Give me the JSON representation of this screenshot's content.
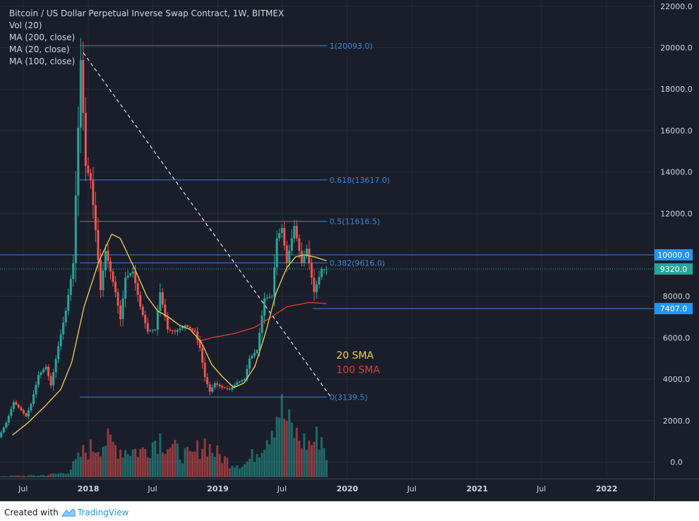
{
  "legend": {
    "title": "Bitcoin / US Dollar Perpetual Inverse Swap Contract, 1W, BITMEX",
    "lines": [
      "Vol (20)",
      "MA (200, close)",
      "MA (20, close)",
      "MA (100, close)"
    ]
  },
  "footer": {
    "created_with": "Created with",
    "brand": "TradingView"
  },
  "colors": {
    "background": "#1a1e2b",
    "axis_text": "#d1d4dc",
    "grid": "#262b3a",
    "up": "#26a69a",
    "down": "#ef5350",
    "fib": "#3c83d7",
    "ma20": "#f2d34d",
    "ma100": "#e03c31",
    "trendline": "#dfe1e6"
  },
  "chart_data": {
    "type": "candlestick",
    "title": "Bitcoin / US Dollar Perpetual Inverse Swap Contract, 1W, BITMEX",
    "ylim": [
      -800,
      22300
    ],
    "y_ticks": [
      "22000.0",
      "20000.0",
      "18000.0",
      "16000.0",
      "14000.0",
      "12000.0",
      "10000.0",
      "8000.0",
      "6000.0",
      "4000.0",
      "2000.0",
      "0.0"
    ],
    "x_ticks": [
      "Jul",
      "2018",
      "Jul",
      "2019",
      "Jul",
      "2020",
      "Jul",
      "2021",
      "Jul",
      "2022"
    ],
    "x_tick_dates": [
      "2017-07-01",
      "2018-01-01",
      "2018-07-01",
      "2019-01-01",
      "2019-07-01",
      "2020-01-01",
      "2020-07-01",
      "2021-01-01",
      "2021-07-01",
      "2022-01-01"
    ],
    "x_range": [
      "2017-04-27",
      "2022-05-14"
    ],
    "price_path": [
      [
        "2017-04-27",
        1200
      ],
      [
        "2017-05-18",
        1900
      ],
      [
        "2017-06-08",
        2900
      ],
      [
        "2017-06-29",
        2500
      ],
      [
        "2017-07-13",
        2200
      ],
      [
        "2017-07-27",
        2800
      ],
      [
        "2017-08-17",
        4200
      ],
      [
        "2017-09-07",
        4600
      ],
      [
        "2017-09-21",
        3700
      ],
      [
        "2017-10-12",
        5600
      ],
      [
        "2017-11-02",
        7300
      ],
      [
        "2017-11-23",
        9600
      ],
      [
        "2017-12-14",
        19400
      ],
      [
        "2017-12-28",
        14300
      ],
      [
        "2018-01-11",
        13600
      ],
      [
        "2018-01-25",
        11200
      ],
      [
        "2018-02-08",
        8300
      ],
      [
        "2018-02-22",
        10200
      ],
      [
        "2018-03-08",
        9200
      ],
      [
        "2018-03-22",
        8200
      ],
      [
        "2018-04-05",
        6900
      ],
      [
        "2018-04-19",
        8900
      ],
      [
        "2018-05-10",
        9200
      ],
      [
        "2018-05-31",
        7500
      ],
      [
        "2018-06-21",
        6300
      ],
      [
        "2018-07-12",
        6400
      ],
      [
        "2018-07-26",
        8200
      ],
      [
        "2018-08-16",
        6400
      ],
      [
        "2018-09-06",
        6300
      ],
      [
        "2018-10-04",
        6600
      ],
      [
        "2018-11-01",
        6300
      ],
      [
        "2018-11-15",
        5500
      ],
      [
        "2018-11-29",
        4100
      ],
      [
        "2018-12-13",
        3400
      ],
      [
        "2018-12-27",
        3800
      ],
      [
        "2019-01-17",
        3600
      ],
      [
        "2019-02-07",
        3500
      ],
      [
        "2019-02-28",
        3850
      ],
      [
        "2019-03-21",
        4000
      ],
      [
        "2019-04-04",
        5000
      ],
      [
        "2019-04-25",
        5400
      ],
      [
        "2019-05-16",
        7900
      ],
      [
        "2019-06-06",
        8000
      ],
      [
        "2019-06-20",
        10800
      ],
      [
        "2019-07-04",
        11300
      ],
      [
        "2019-07-18",
        9600
      ],
      [
        "2019-08-08",
        11400
      ],
      [
        "2019-08-29",
        9600
      ],
      [
        "2019-09-12",
        10300
      ],
      [
        "2019-10-03",
        8200
      ],
      [
        "2019-10-24",
        9300
      ],
      [
        "2019-11-06",
        9300
      ]
    ],
    "volume_path": [
      [
        "2017-04-27",
        60
      ],
      [
        "2017-07-01",
        90
      ],
      [
        "2017-09-01",
        130
      ],
      [
        "2017-11-01",
        300
      ],
      [
        "2017-12-14",
        1500
      ],
      [
        "2018-01-15",
        1850
      ],
      [
        "2018-02-15",
        2200
      ],
      [
        "2018-04-01",
        1700
      ],
      [
        "2018-06-01",
        1600
      ],
      [
        "2018-07-15",
        2500
      ],
      [
        "2018-09-01",
        1600
      ],
      [
        "2018-10-15",
        1200
      ],
      [
        "2018-11-20",
        2200
      ],
      [
        "2018-12-20",
        1500
      ],
      [
        "2019-02-01",
        900
      ],
      [
        "2019-03-15",
        800
      ],
      [
        "2019-04-15",
        1500
      ],
      [
        "2019-05-15",
        2600
      ],
      [
        "2019-06-20",
        4300
      ],
      [
        "2019-07-15",
        3200
      ],
      [
        "2019-08-15",
        2300
      ],
      [
        "2019-09-15",
        2000
      ],
      [
        "2019-10-15",
        2600
      ],
      [
        "2019-11-06",
        900
      ]
    ],
    "ma20_path": [
      [
        "2017-06-01",
        1300
      ],
      [
        "2017-07-15",
        1900
      ],
      [
        "2017-09-01",
        2700
      ],
      [
        "2017-10-15",
        3500
      ],
      [
        "2017-11-15",
        4800
      ],
      [
        "2017-12-20",
        7500
      ],
      [
        "2018-01-31",
        9700
      ],
      [
        "2018-03-08",
        11000
      ],
      [
        "2018-04-01",
        10800
      ],
      [
        "2018-05-15",
        9200
      ],
      [
        "2018-06-15",
        8000
      ],
      [
        "2018-07-15",
        7300
      ],
      [
        "2018-08-15",
        7000
      ],
      [
        "2018-09-15",
        6600
      ],
      [
        "2018-10-15",
        6400
      ],
      [
        "2018-11-15",
        5800
      ],
      [
        "2018-12-15",
        4700
      ],
      [
        "2019-01-15",
        4100
      ],
      [
        "2019-02-15",
        3600
      ],
      [
        "2019-03-15",
        3800
      ],
      [
        "2019-04-15",
        4600
      ],
      [
        "2019-05-15",
        6200
      ],
      [
        "2019-06-15",
        8200
      ],
      [
        "2019-07-15",
        9400
      ],
      [
        "2019-08-08",
        9900
      ],
      [
        "2019-09-01",
        10000
      ],
      [
        "2019-10-01",
        9900
      ],
      [
        "2019-11-06",
        9700
      ]
    ],
    "ma100_path": [
      [
        "2018-11-01",
        5800
      ],
      [
        "2018-12-15",
        6000
      ],
      [
        "2019-02-15",
        6200
      ],
      [
        "2019-04-15",
        6500
      ],
      [
        "2019-06-01",
        7000
      ],
      [
        "2019-07-15",
        7500
      ],
      [
        "2019-09-15",
        7700
      ],
      [
        "2019-11-06",
        7650
      ]
    ],
    "fib_levels": [
      {
        "label": "1(20093.0)",
        "value": 20093.0
      },
      {
        "label": "0.618(13617.0)",
        "value": 13617.0
      },
      {
        "label": "0.5(11616.5)",
        "value": 11616.5
      },
      {
        "label": "0.382(9616.0)",
        "value": 9616.0
      },
      {
        "label": "0(3139.5)",
        "value": 3139.5
      }
    ],
    "fib_range": [
      "2017-12-08",
      "2019-11-06"
    ],
    "trendline": [
      [
        "2017-12-18",
        19750
      ],
      [
        "2019-11-13",
        3200
      ]
    ],
    "price_lines": [
      {
        "label": "10000.0",
        "value": 10000.0,
        "style": "solid",
        "x_from": "2017-04-27"
      },
      {
        "label": "9320.0",
        "value": 9320.0,
        "style": "dotted",
        "x_from": "2017-04-27",
        "highlight": "last"
      },
      {
        "label": "7407.0",
        "value": 7407.0,
        "style": "solid",
        "x_from": "2019-09-25"
      }
    ],
    "annotations": [
      {
        "text": "20 SMA",
        "color": "ma20",
        "x": "2019-12-01",
        "y": 5000
      },
      {
        "text": "100 SMA",
        "color": "ma100",
        "x": "2019-12-01",
        "y": 4300
      }
    ]
  }
}
